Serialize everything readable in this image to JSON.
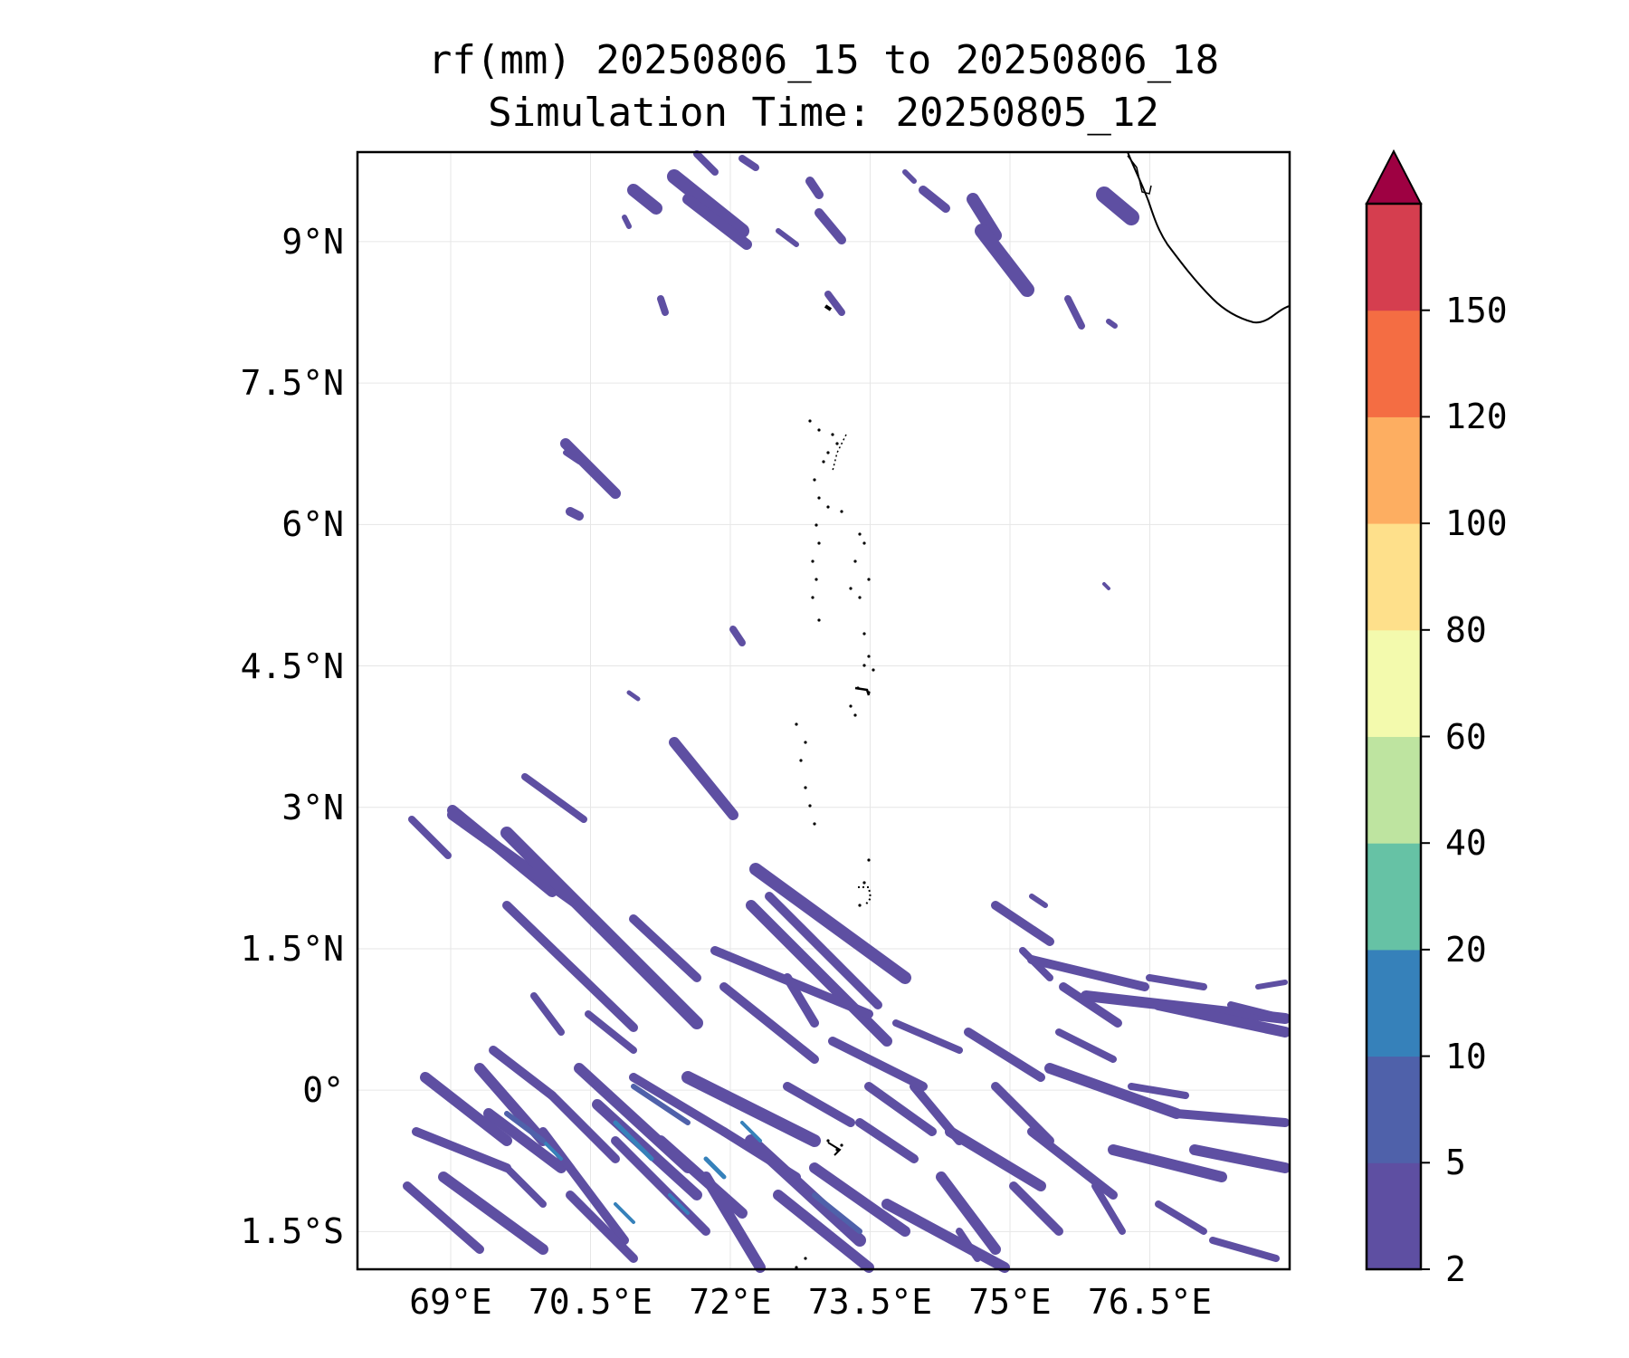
{
  "title": {
    "line1": "rf(mm) 20250806_15 to 20250806_18",
    "line2": "Simulation Time: 20250805_12"
  },
  "map": {
    "lon_range": [
      68.0,
      78.0
    ],
    "lat_range": [
      -1.9,
      9.95
    ],
    "lon_ticks": [
      {
        "value": 69.0,
        "label": "69°E"
      },
      {
        "value": 70.5,
        "label": "70.5°E"
      },
      {
        "value": 72.0,
        "label": "72°E"
      },
      {
        "value": 73.5,
        "label": "73.5°E"
      },
      {
        "value": 75.0,
        "label": "75°E"
      },
      {
        "value": 76.5,
        "label": "76.5°E"
      }
    ],
    "lat_ticks": [
      {
        "value": 9.0,
        "label": "9°N"
      },
      {
        "value": 7.5,
        "label": "7.5°N"
      },
      {
        "value": 6.0,
        "label": "6°N"
      },
      {
        "value": 4.5,
        "label": "4.5°N"
      },
      {
        "value": 3.0,
        "label": "3°N"
      },
      {
        "value": 1.5,
        "label": "1.5°N"
      },
      {
        "value": 0.0,
        "label": "0°"
      },
      {
        "value": -1.5,
        "label": "1.5°S"
      }
    ],
    "gridlines": true,
    "coastline_color": "#000000"
  },
  "colorbar": {
    "levels": [
      "2",
      "5",
      "10",
      "20",
      "40",
      "60",
      "80",
      "100",
      "120",
      "150"
    ],
    "colors": [
      "#5e4fa2",
      "#4f61aa",
      "#3681ba",
      "#66c2a5",
      "#bee4a0",
      "#f3faad",
      "#fee08b",
      "#fdae61",
      "#f46d43",
      "#d53e4f"
    ],
    "extend_color": "#9e0142",
    "extend": "max"
  }
}
